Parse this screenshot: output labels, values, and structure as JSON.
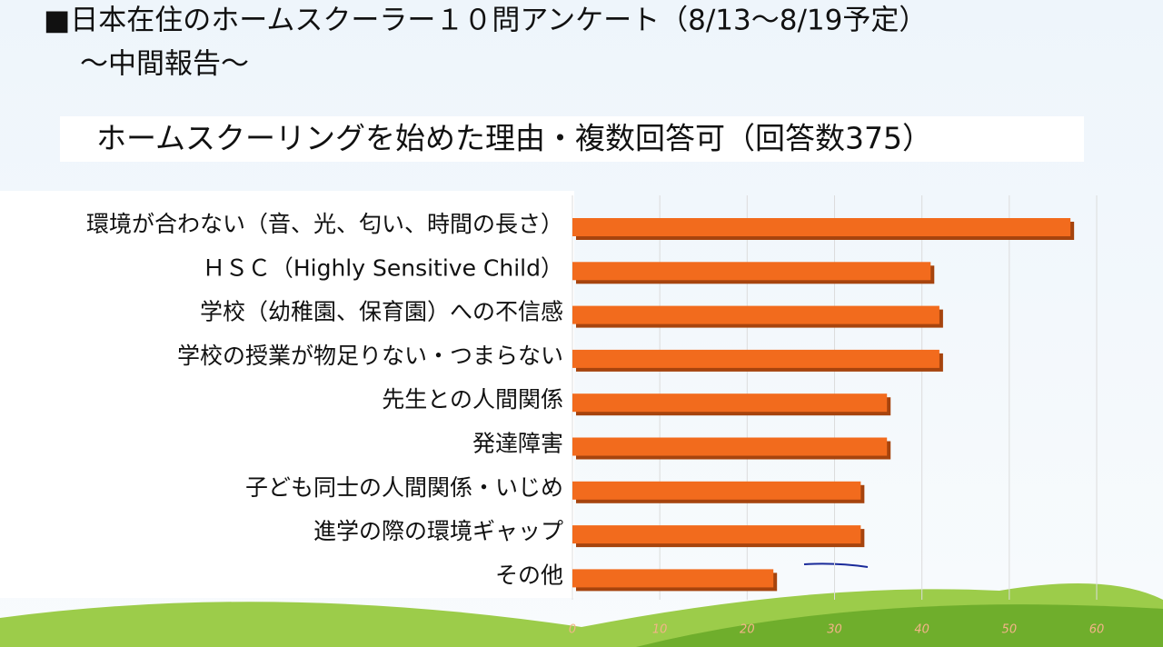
{
  "title": "■日本在住のホームスクーラー１０問アンケート（8/13〜8/19予定）",
  "subtitle": "〜中間報告〜",
  "chart_data": {
    "type": "bar",
    "orientation": "horizontal",
    "title": "ホームスクーリングを始めた理由・複数回答可（回答数375）",
    "categories": [
      "環境が合わない（音、光、匂い、時間の長さ）",
      "ＨＳＣ（Highly Sensitive Child）",
      "学校（幼稚園、保育園）への不信感",
      "学校の授業が物足りない・つまらない",
      "先生との人間関係",
      "発達障害",
      "子ども同士の人間関係・いじめ",
      "進学の際の環境ギャップ",
      "その他"
    ],
    "values": [
      57,
      41,
      42,
      42,
      36,
      36,
      33,
      33,
      23
    ],
    "color": "#f26b1d",
    "xlim": [
      0,
      60
    ],
    "xticks": [
      0,
      10,
      20,
      30,
      40,
      50,
      60
    ],
    "grid": true
  }
}
